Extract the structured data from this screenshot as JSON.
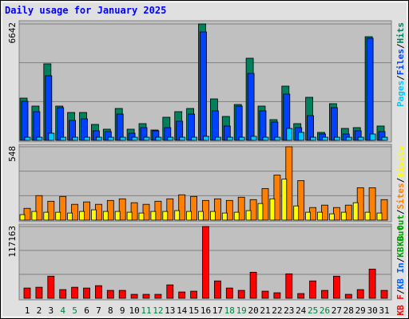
{
  "chart_data": [
    {
      "type": "bar",
      "title": "Daily usage for January 2025",
      "categories": [
        "1",
        "2",
        "3",
        "4",
        "5",
        "6",
        "7",
        "8",
        "9",
        "10",
        "11",
        "12",
        "13",
        "14",
        "15",
        "16",
        "17",
        "18",
        "19",
        "20",
        "21",
        "22",
        "23",
        "24",
        "25",
        "26",
        "27",
        "28",
        "29",
        "30",
        "31"
      ],
      "category_colors": [
        "#000000",
        "#000000",
        "#000000",
        "#008040",
        "#008040",
        "#000000",
        "#000000",
        "#000000",
        "#000000",
        "#000000",
        "#008040",
        "#008040",
        "#000000",
        "#000000",
        "#000000",
        "#000000",
        "#000000",
        "#008040",
        "#008040",
        "#000000",
        "#000000",
        "#000000",
        "#000000",
        "#000000",
        "#008040",
        "#008040",
        "#000000",
        "#000000",
        "#000000",
        "#000000",
        "#000000"
      ],
      "legend_separator": "/",
      "series": [
        {
          "name": "Pages",
          "color": "#00c8ff",
          "values": [
            180,
            180,
            409,
            180,
            180,
            180,
            180,
            180,
            180,
            180,
            180,
            180,
            180,
            180,
            180,
            230,
            180,
            180,
            180,
            230,
            180,
            180,
            682,
            455,
            180,
            180,
            180,
            180,
            180,
            364,
            180
          ]
        },
        {
          "name": "Files",
          "color": "#0040ff",
          "values": [
            2229,
            1638,
            3685,
            1865,
            1137,
            1228,
            546,
            500,
            1501,
            409,
            728,
            546,
            728,
            1092,
            1501,
            6187,
            1683,
            819,
            1956,
            3821,
            1683,
            1046,
            2639,
            728,
            1410,
            364,
            1865,
            364,
            546,
            5823,
            500
          ]
        },
        {
          "name": "Hits",
          "color": "#00805c",
          "values": [
            2411,
            1956,
            4367,
            1956,
            1592,
            1592,
            910,
            637,
            1820,
            637,
            955,
            591,
            1319,
            1638,
            1820,
            6642,
            2366,
            1365,
            2047,
            4686,
            1956,
            1183,
            3094,
            955,
            2457,
            455,
            2093,
            682,
            728,
            5914,
            819
          ]
        }
      ],
      "ylim": [
        0,
        6642
      ],
      "yticks": [
        6642
      ]
    },
    {
      "type": "bar",
      "legend_extra": [
        {
          "name": "KB Out",
          "color": "#00a000"
        }
      ],
      "legend_extra_first": true,
      "series": [
        {
          "name": "Sites",
          "color": "#ff8000",
          "values": [
            88,
            183,
            141,
            177,
            118,
            136,
            118,
            147,
            159,
            130,
            118,
            141,
            159,
            189,
            177,
            147,
            159,
            147,
            171,
            153,
            236,
            336,
            548,
            295,
            94,
            112,
            94,
            112,
            242,
            242,
            153
          ]
        },
        {
          "name": "Visits",
          "color": "#ffff00",
          "values": [
            41,
            65,
            59,
            59,
            53,
            65,
            77,
            65,
            65,
            59,
            53,
            65,
            65,
            71,
            65,
            65,
            65,
            53,
            59,
            71,
            124,
            159,
            306,
            106,
            59,
            59,
            47,
            59,
            130,
            59,
            53
          ]
        }
      ],
      "ylim": [
        0,
        548
      ],
      "yticks": [
        548
      ]
    },
    {
      "type": "bar",
      "legend_extra": [
        {
          "name": "KB In",
          "color": "#0060ff"
        },
        {
          "name": "KB Out",
          "color": "#00a000"
        }
      ],
      "legend_extra_first": false,
      "series": [
        {
          "name": "KB F",
          "color": "#ff0000",
          "values": [
            16735,
            18022,
            36049,
            14160,
            18022,
            16735,
            20597,
            12873,
            12873,
            6437,
            6437,
            6437,
            21885,
            10300,
            11586,
            117163,
            28323,
            16735,
            12873,
            42487,
            11586,
            9012,
            39912,
            7725,
            28323,
            12873,
            36049,
            6437,
            14160,
            47636,
            12873
          ]
        }
      ],
      "ylim": [
        0,
        117163
      ],
      "yticks": [
        117163
      ]
    }
  ]
}
